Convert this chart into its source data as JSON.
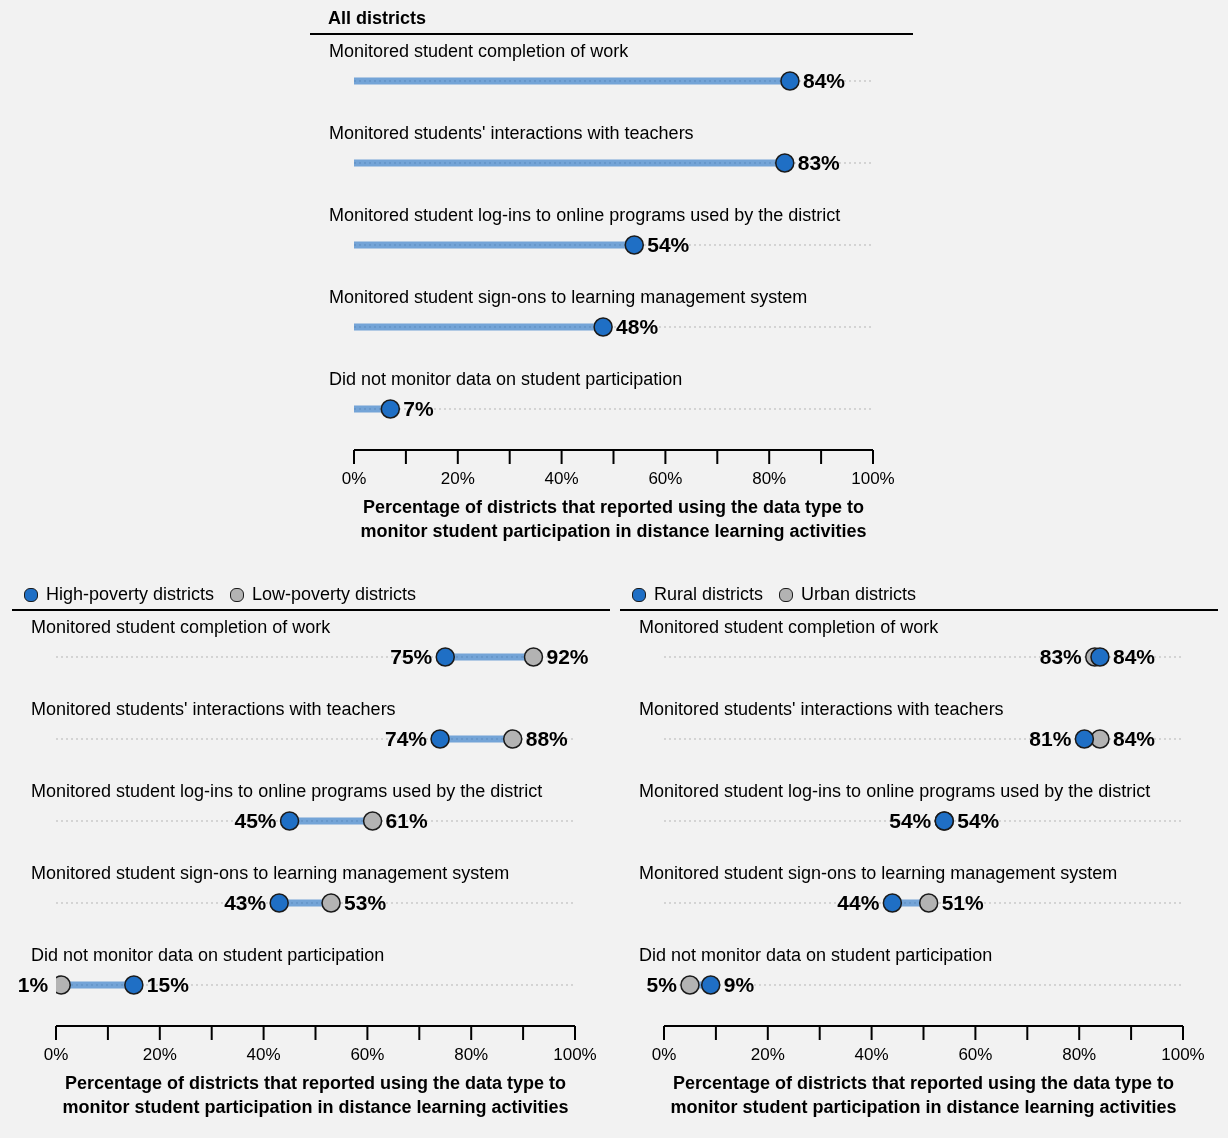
{
  "chart_data": [
    {
      "type": "lollipop",
      "orientation": "horizontal",
      "title": "All districts",
      "categories": [
        "Monitored student completion of work",
        "Monitored students' interactions with teachers",
        "Monitored student log-ins to online programs used by the district",
        "Monitored student sign-ons to learning management system",
        "Did not monitor data on student participation"
      ],
      "values": [
        84,
        83,
        54,
        48,
        7
      ],
      "value_labels": [
        "84%",
        "83%",
        "54%",
        "48%",
        "7%"
      ],
      "color": "#1f6fc5",
      "marker": "circle",
      "grid": "y",
      "xlim": [
        0,
        100
      ],
      "xticks": [
        {
          "value": 0,
          "label": "0%"
        },
        {
          "value": 10,
          "label": null
        },
        {
          "value": 20,
          "label": "20%"
        },
        {
          "value": 30,
          "label": null
        },
        {
          "value": 40,
          "label": "40%"
        },
        {
          "value": 50,
          "label": null
        },
        {
          "value": 60,
          "label": "60%"
        },
        {
          "value": 70,
          "label": null
        },
        {
          "value": 80,
          "label": "80%"
        },
        {
          "value": 90,
          "label": null
        },
        {
          "value": 100,
          "label": "100%"
        }
      ],
      "xlabel": "Percentage of districts that reported using the data type to monitor student participation in distance learning activities"
    },
    {
      "type": "lollipop",
      "orientation": "horizontal",
      "categories": [
        "Monitored student completion of work",
        "Monitored students' interactions with teachers",
        "Monitored student log-ins to online programs used by the district",
        "Monitored student sign-ons to learning management system",
        "Did not monitor data on student participation"
      ],
      "series": [
        {
          "name": "High-poverty districts",
          "color": "#1f6fc5",
          "values": [
            75,
            74,
            45,
            43,
            15
          ],
          "value_labels": [
            "75%",
            "74%",
            "45%",
            "43%",
            "15%"
          ]
        },
        {
          "name": "Low-poverty districts",
          "color": "#b3b3b3",
          "values": [
            92,
            88,
            61,
            53,
            1
          ],
          "value_labels": [
            "92%",
            "88%",
            "61%",
            "53%",
            "1%"
          ]
        }
      ],
      "legend": "top left",
      "marker": "circle",
      "grid": "y",
      "xlim": [
        0,
        100
      ],
      "xticks": [
        {
          "value": 0,
          "label": "0%"
        },
        {
          "value": 10,
          "label": null
        },
        {
          "value": 20,
          "label": "20%"
        },
        {
          "value": 30,
          "label": null
        },
        {
          "value": 40,
          "label": "40%"
        },
        {
          "value": 50,
          "label": null
        },
        {
          "value": 60,
          "label": "60%"
        },
        {
          "value": 70,
          "label": null
        },
        {
          "value": 80,
          "label": "80%"
        },
        {
          "value": 90,
          "label": null
        },
        {
          "value": 100,
          "label": "100%"
        }
      ],
      "xlabel": "Percentage of districts that reported using the data type to monitor student participation in distance learning activities"
    },
    {
      "type": "lollipop",
      "orientation": "horizontal",
      "categories": [
        "Monitored student completion of work",
        "Monitored students' interactions with teachers",
        "Monitored student log-ins to online programs used by the district",
        "Monitored student sign-ons to learning management system",
        "Did not monitor data on student participation"
      ],
      "series": [
        {
          "name": "Rural districts",
          "color": "#1f6fc5",
          "values": [
            84,
            81,
            54,
            44,
            9
          ],
          "value_labels": [
            "84%",
            "81%",
            "54%",
            "44%",
            "9%"
          ]
        },
        {
          "name": "Urban districts",
          "color": "#b3b3b3",
          "values": [
            83,
            84,
            54,
            51,
            5
          ],
          "value_labels": [
            "83%",
            "84%",
            "54%",
            "51%",
            "5%"
          ]
        }
      ],
      "legend": "top left",
      "marker": "circle",
      "grid": "y",
      "xlim": [
        0,
        100
      ],
      "xticks": [
        {
          "value": 0,
          "label": "0%"
        },
        {
          "value": 10,
          "label": null
        },
        {
          "value": 20,
          "label": "20%"
        },
        {
          "value": 30,
          "label": null
        },
        {
          "value": 40,
          "label": "40%"
        },
        {
          "value": 50,
          "label": null
        },
        {
          "value": 60,
          "label": "60%"
        },
        {
          "value": 70,
          "label": null
        },
        {
          "value": 80,
          "label": "80%"
        },
        {
          "value": 90,
          "label": null
        },
        {
          "value": 100,
          "label": "100%"
        }
      ],
      "xlabel": "Percentage of districts that reported using the data type to monitor student participation in distance learning activities"
    }
  ]
}
